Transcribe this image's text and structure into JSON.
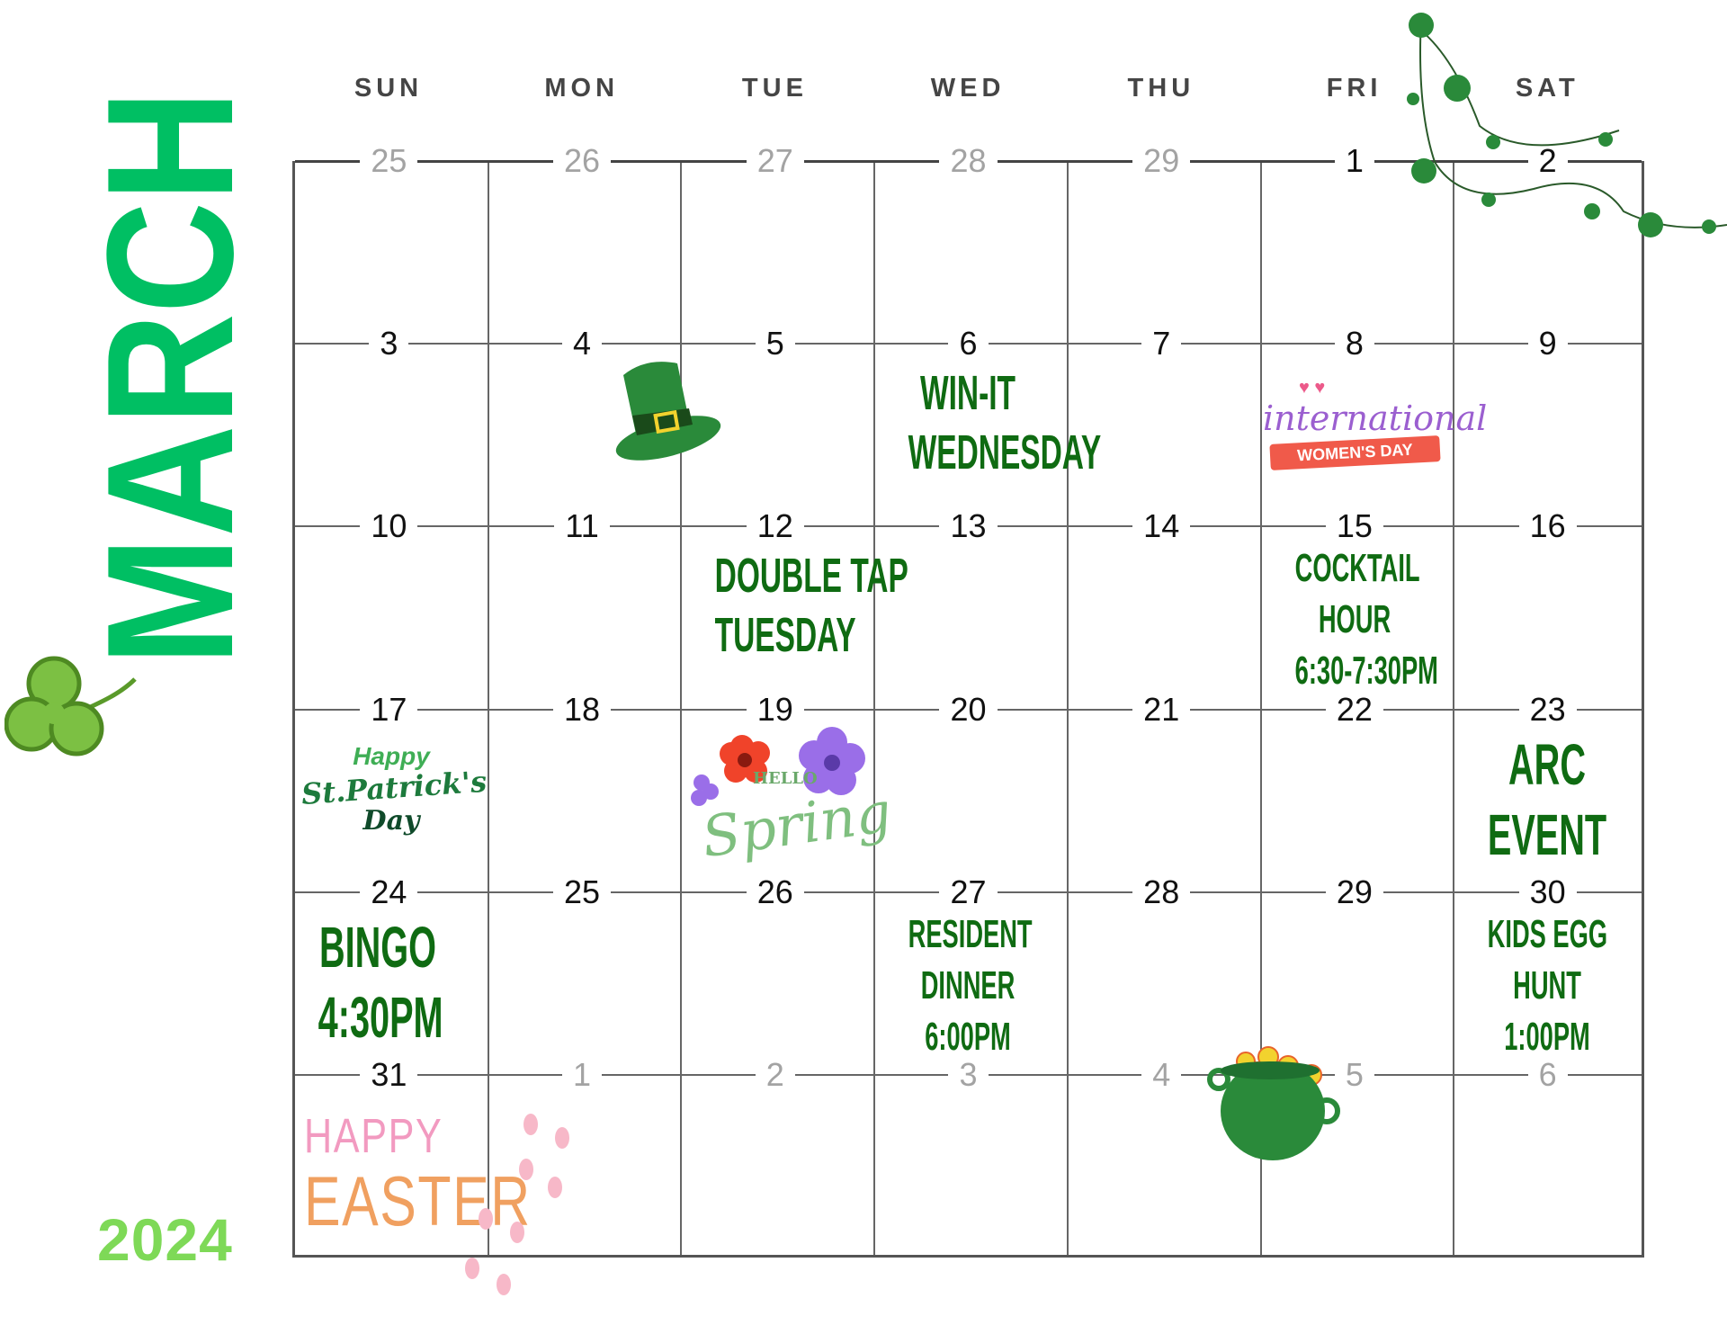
{
  "month": "MARCH",
  "year": "2024",
  "colors": {
    "month": "#00bf63",
    "year": "#7ed957",
    "event": "#0f6b12",
    "muted_date": "#a3a3a3",
    "grid": "#666666"
  },
  "days_of_week": [
    "SUN",
    "MON",
    "TUE",
    "WED",
    "THU",
    "FRI",
    "SAT"
  ],
  "weeks": [
    [
      {
        "d": "25",
        "muted": true
      },
      {
        "d": "26",
        "muted": true
      },
      {
        "d": "27",
        "muted": true
      },
      {
        "d": "28",
        "muted": true
      },
      {
        "d": "29",
        "muted": true
      },
      {
        "d": "1"
      },
      {
        "d": "2"
      }
    ],
    [
      {
        "d": "3"
      },
      {
        "d": "4"
      },
      {
        "d": "5"
      },
      {
        "d": "6"
      },
      {
        "d": "7"
      },
      {
        "d": "8"
      },
      {
        "d": "9"
      }
    ],
    [
      {
        "d": "10"
      },
      {
        "d": "11"
      },
      {
        "d": "12"
      },
      {
        "d": "13"
      },
      {
        "d": "14"
      },
      {
        "d": "15"
      },
      {
        "d": "16"
      }
    ],
    [
      {
        "d": "17"
      },
      {
        "d": "18"
      },
      {
        "d": "19"
      },
      {
        "d": "20"
      },
      {
        "d": "21"
      },
      {
        "d": "22"
      },
      {
        "d": "23"
      }
    ],
    [
      {
        "d": "24"
      },
      {
        "d": "25"
      },
      {
        "d": "26"
      },
      {
        "d": "27"
      },
      {
        "d": "28"
      },
      {
        "d": "29"
      },
      {
        "d": "30"
      }
    ],
    [
      {
        "d": "31"
      },
      {
        "d": "1",
        "muted": true
      },
      {
        "d": "2",
        "muted": true
      },
      {
        "d": "3",
        "muted": true
      },
      {
        "d": "4",
        "muted": true
      },
      {
        "d": "5",
        "muted": true
      },
      {
        "d": "6",
        "muted": true
      }
    ]
  ],
  "events": [
    {
      "date": "6",
      "week": 1,
      "day": 3,
      "lines": [
        "WIN-IT",
        "WEDNESDAY"
      ],
      "size": "large"
    },
    {
      "date": "12",
      "week": 2,
      "day": 2,
      "lines": [
        "DOUBLE TAP",
        "TUESDAY"
      ],
      "size": "large"
    },
    {
      "date": "15",
      "week": 2,
      "day": 5,
      "lines": [
        "COCKTAIL",
        "HOUR",
        "6:30-7:30PM"
      ],
      "size": "small"
    },
    {
      "date": "23",
      "week": 3,
      "day": 6,
      "lines": [
        "ARC",
        "EVENT"
      ],
      "size": "xlarge"
    },
    {
      "date": "24",
      "week": 4,
      "day": 0,
      "lines": [
        "BINGO",
        "4:30PM"
      ],
      "size": "xlarge"
    },
    {
      "date": "27",
      "week": 4,
      "day": 3,
      "lines": [
        "RESIDENT",
        "DINNER",
        "6:00PM"
      ],
      "size": "small"
    },
    {
      "date": "30",
      "week": 4,
      "day": 6,
      "lines": [
        "KIDS EGG",
        "HUNT",
        "1:00PM"
      ],
      "size": "small"
    }
  ],
  "stickers": {
    "womens_day": {
      "line1": "international",
      "line2": "WOMEN'S DAY"
    },
    "st_patricks": {
      "line1": "Happy",
      "line2": "St.Patrick's",
      "line3": "Day"
    },
    "spring": {
      "line1": "HELLO",
      "line2": "Spring"
    },
    "easter": {
      "line1": "HAPPY",
      "line2": "EASTER"
    }
  }
}
